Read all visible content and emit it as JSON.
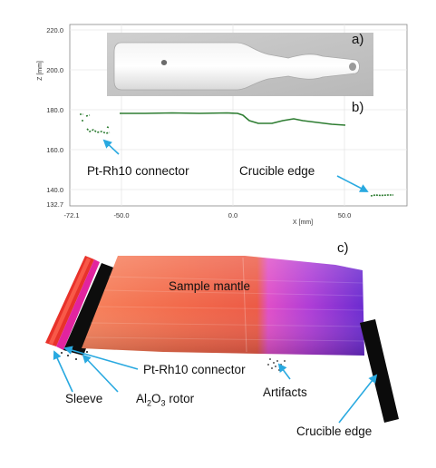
{
  "panels": {
    "a": "a)",
    "b": "b)",
    "c": "c)"
  },
  "profile_plot": {
    "ylabel": "Z [mm]",
    "xlabel": "X [mm]",
    "yticks": [
      "220.0",
      "200.0",
      "180.0",
      "160.0",
      "140.0",
      "132.7"
    ],
    "xticks": [
      "-72.1",
      "-50.0",
      "0.0",
      "50.0"
    ]
  },
  "annotations_b": {
    "connector": "Pt-Rh10 connector",
    "crucible_edge": "Crucible edge"
  },
  "annotations_c": {
    "sample_mantle": "Sample mantle",
    "connector": "Pt-Rh10 connector",
    "sleeve": "Sleeve",
    "rotor_prefix": "Al",
    "rotor_sub1": "2",
    "rotor_mid": "O",
    "rotor_sub2": "3",
    "rotor_suffix": " rotor",
    "artifacts": "Artifacts",
    "crucible_edge": "Crucible edge"
  },
  "colors": {
    "profile_line": "#2e7d32",
    "arrow": "#29a9e0",
    "mantle_hot": "#f26a4b",
    "mantle_magenta": "#d43fd0",
    "mantle_purple": "#7a2fd6",
    "sleeve_red": "#e8322a"
  }
}
